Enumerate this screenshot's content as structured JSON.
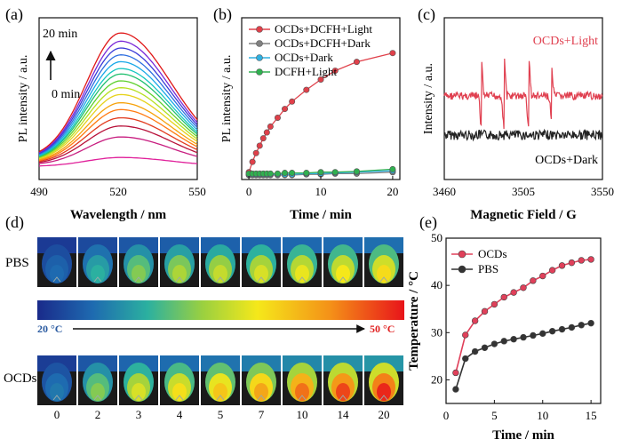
{
  "panel_labels": {
    "a": "(a)",
    "b": "(b)",
    "c": "(c)",
    "d": "(d)",
    "e": "(e)"
  },
  "chart_data": [
    {
      "id": "a",
      "type": "line",
      "title": "",
      "xlabel": "Wavelength / nm",
      "ylabel": "PL intensity / a.u.",
      "xlim": [
        490,
        550
      ],
      "xticks": [
        "490",
        "520",
        "550"
      ],
      "annotations": [
        "20 min",
        "0 min"
      ],
      "peak_x": 521,
      "series_peaks": [
        0.07,
        0.22,
        0.3,
        0.36,
        0.42,
        0.47,
        0.53,
        0.58,
        0.63,
        0.68,
        0.72,
        0.77,
        0.82,
        0.87,
        0.92,
        0.98
      ],
      "colors": [
        "#e0209a",
        "#c81e80",
        "#b8123a",
        "#e23b1e",
        "#ff7a10",
        "#f6a20a",
        "#e6d21a",
        "#b6e020",
        "#5dd02e",
        "#20c070",
        "#16c6c0",
        "#18a8e8",
        "#2e6ee0",
        "#3a3ad8",
        "#7a28d8",
        "#e01818"
      ]
    },
    {
      "id": "b",
      "type": "line",
      "xlabel": "Time / min",
      "ylabel": "PL intensity / a.u.",
      "xlim": [
        -1,
        21
      ],
      "xticks": [
        0,
        10,
        20
      ],
      "ylim": [
        0,
        1.1
      ],
      "legend_position": "top-right",
      "series": [
        {
          "name": "OCDs+DCFH+Light",
          "color": "#e0404a",
          "x": [
            0,
            0.5,
            1,
            1.5,
            2,
            2.5,
            3,
            4,
            5,
            6,
            8,
            10,
            12,
            15,
            20
          ],
          "y": [
            0.05,
            0.12,
            0.18,
            0.23,
            0.28,
            0.32,
            0.36,
            0.42,
            0.48,
            0.53,
            0.61,
            0.68,
            0.74,
            0.8,
            0.86
          ]
        },
        {
          "name": "OCDs+DCFH+Dark",
          "color": "#808080",
          "x": [
            0,
            0.5,
            1,
            1.5,
            2,
            2.5,
            3,
            4,
            5,
            6,
            8,
            10,
            12,
            15,
            20
          ],
          "y": [
            0.03,
            0.03,
            0.03,
            0.03,
            0.03,
            0.03,
            0.03,
            0.03,
            0.03,
            0.03,
            0.035,
            0.035,
            0.04,
            0.04,
            0.05
          ]
        },
        {
          "name": "OCDs+Dark",
          "color": "#30b0e0",
          "x": [
            0,
            0.5,
            1,
            1.5,
            2,
            2.5,
            3,
            4,
            5,
            6,
            8,
            10,
            12,
            15,
            20
          ],
          "y": [
            0.035,
            0.035,
            0.035,
            0.035,
            0.035,
            0.035,
            0.035,
            0.035,
            0.035,
            0.035,
            0.04,
            0.04,
            0.045,
            0.05,
            0.06
          ]
        },
        {
          "name": "DCFH+Light",
          "color": "#30b050",
          "x": [
            0,
            0.5,
            1,
            1.5,
            2,
            2.5,
            3,
            4,
            5,
            6,
            8,
            10,
            12,
            15,
            20
          ],
          "y": [
            0.04,
            0.04,
            0.04,
            0.04,
            0.04,
            0.04,
            0.04,
            0.04,
            0.045,
            0.045,
            0.045,
            0.05,
            0.05,
            0.055,
            0.07
          ]
        }
      ]
    },
    {
      "id": "c",
      "type": "line",
      "xlabel": "Magnetic Field / G",
      "ylabel": "Intensity / a.u.",
      "xlim": [
        3460,
        3550
      ],
      "xticks": [
        "3460",
        "3505",
        "3550"
      ],
      "series": [
        {
          "name": "OCDs+Light",
          "color": "#e04050",
          "peaks_x": [
            3481,
            3494,
            3508,
            3521
          ]
        },
        {
          "name": "OCDs+Dark",
          "color": "#222222"
        }
      ]
    },
    {
      "id": "e",
      "type": "line",
      "xlabel": "Time / min",
      "ylabel": "Temperature / °C",
      "xlim": [
        0,
        16
      ],
      "xticks": [
        0,
        5,
        10,
        15
      ],
      "ylim": [
        15,
        50
      ],
      "yticks": [
        20,
        30,
        40,
        50
      ],
      "legend_position": "top-left",
      "series": [
        {
          "name": "OCDs",
          "color": "#e0405a",
          "x": [
            1,
            2,
            3,
            4,
            5,
            6,
            7,
            8,
            9,
            10,
            11,
            12,
            13,
            14,
            15
          ],
          "y": [
            21.5,
            29.5,
            32.5,
            34.5,
            36.0,
            37.5,
            38.5,
            39.5,
            41.0,
            42.0,
            43.2,
            44.2,
            44.8,
            45.3,
            45.5
          ]
        },
        {
          "name": "PBS",
          "color": "#333333",
          "x": [
            1,
            2,
            3,
            4,
            5,
            6,
            7,
            8,
            9,
            10,
            11,
            12,
            13,
            14,
            15
          ],
          "y": [
            18.0,
            24.5,
            26.0,
            26.8,
            27.6,
            28.2,
            28.6,
            29.0,
            29.4,
            29.8,
            30.3,
            30.7,
            31.1,
            31.6,
            32.0
          ]
        }
      ]
    }
  ],
  "thermal": {
    "row_labels": [
      "PBS",
      "OCDs"
    ],
    "scale_min": "20 °C",
    "scale_max": "50 °C",
    "time_labels": [
      "0",
      "2",
      "3",
      "4",
      "5",
      "7",
      "10",
      "14",
      "20"
    ],
    "pbs_levels": [
      0.15,
      0.3,
      0.42,
      0.48,
      0.52,
      0.55,
      0.58,
      0.6,
      0.63
    ],
    "ocds_levels": [
      0.18,
      0.42,
      0.55,
      0.62,
      0.68,
      0.75,
      0.85,
      0.92,
      0.97
    ]
  }
}
